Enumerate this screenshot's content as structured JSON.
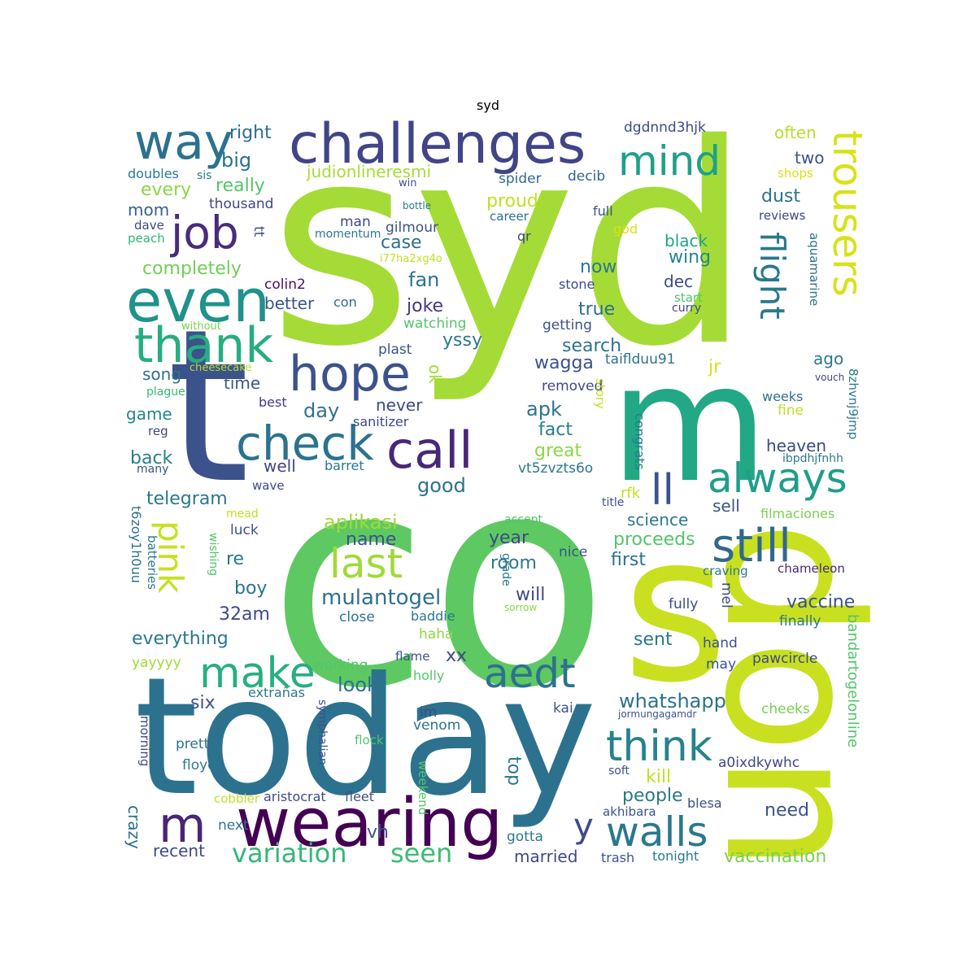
{
  "title": "syd",
  "words": [
    {
      "text": "syd",
      "color": "#a5db36"
    },
    {
      "text": "co",
      "color": "#5ec962"
    },
    {
      "text": "today",
      "color": "#2c728e"
    },
    {
      "text": "t",
      "color": "#3b528b"
    },
    {
      "text": "m",
      "color": "#22a884"
    },
    {
      "text": "don",
      "color": "#c8e020"
    },
    {
      "text": "s",
      "color": "#c8e020"
    },
    {
      "text": "challenges",
      "color": "#414487"
    },
    {
      "text": "wearing",
      "color": "#440154"
    },
    {
      "text": "even",
      "color": "#21918c"
    },
    {
      "text": "way",
      "color": "#2c728e"
    },
    {
      "text": "job",
      "color": "#472d7b"
    },
    {
      "text": "thank",
      "color": "#27ad81"
    },
    {
      "text": "hope",
      "color": "#3b528b"
    },
    {
      "text": "check",
      "color": "#2c728e"
    },
    {
      "text": "call",
      "color": "#482878"
    },
    {
      "text": "mind",
      "color": "#1fa088"
    },
    {
      "text": "trousers",
      "color": "#d8e219"
    },
    {
      "text": "flight",
      "color": "#2a788e"
    },
    {
      "text": "always",
      "color": "#1f9e89"
    },
    {
      "text": "ll",
      "color": "#3b528b"
    },
    {
      "text": "still",
      "color": "#31688e"
    },
    {
      "text": "last",
      "color": "#a0da39"
    },
    {
      "text": "pink",
      "color": "#c8e020"
    },
    {
      "text": "make",
      "color": "#28ae80"
    },
    {
      "text": "aedt",
      "color": "#2c728e"
    },
    {
      "text": "think",
      "color": "#26828e"
    },
    {
      "text": "m",
      "color": "#482677"
    },
    {
      "text": "y",
      "color": "#3e4a89"
    },
    {
      "text": "walls",
      "color": "#2a788e"
    },
    {
      "text": "variation",
      "color": "#35b779"
    },
    {
      "text": "seen",
      "color": "#3dbc74"
    },
    {
      "text": "right",
      "color": "#2f6c8e"
    },
    {
      "text": "big",
      "color": "#2e6e8e"
    },
    {
      "text": "really",
      "color": "#52c569"
    },
    {
      "text": "every",
      "color": "#8bd646"
    },
    {
      "text": "mom",
      "color": "#33638d"
    },
    {
      "text": "doubles",
      "color": "#2a788e"
    },
    {
      "text": "sis",
      "color": "#2a788e"
    },
    {
      "text": "thousand",
      "color": "#404688"
    },
    {
      "text": "dave",
      "color": "#3e4989"
    },
    {
      "text": "peach",
      "color": "#34b679"
    },
    {
      "text": "tt",
      "color": "#3e4989"
    },
    {
      "text": "completely",
      "color": "#70cf57"
    },
    {
      "text": "colin2",
      "color": "#471164"
    },
    {
      "text": "better",
      "color": "#3b528b"
    },
    {
      "text": "con",
      "color": "#31688e"
    },
    {
      "text": "without",
      "color": "#7ad151"
    },
    {
      "text": "cheesecake",
      "color": "#b5de2b"
    },
    {
      "text": "song",
      "color": "#2d718e"
    },
    {
      "text": "time",
      "color": "#39568c"
    },
    {
      "text": "plague",
      "color": "#37b878"
    },
    {
      "text": "best",
      "color": "#443a83"
    },
    {
      "text": "game",
      "color": "#25858e"
    },
    {
      "text": "reg",
      "color": "#3f4788"
    },
    {
      "text": "back",
      "color": "#277f8e"
    },
    {
      "text": "many",
      "color": "#3b528b"
    },
    {
      "text": "judionlineresmi",
      "color": "#a8db34"
    },
    {
      "text": "proud",
      "color": "#c2df23"
    },
    {
      "text": "case",
      "color": "#2d708e"
    },
    {
      "text": "fan",
      "color": "#2c728e"
    },
    {
      "text": "joke",
      "color": "#453781"
    },
    {
      "text": "watching",
      "color": "#52c569"
    },
    {
      "text": "yssy",
      "color": "#2a788e"
    },
    {
      "text": "plast",
      "color": "#3b528b"
    },
    {
      "text": "spider",
      "color": "#2f6c8e"
    },
    {
      "text": "win",
      "color": "#3b528b"
    },
    {
      "text": "bottle",
      "color": "#2a788e"
    },
    {
      "text": "man",
      "color": "#3e4989"
    },
    {
      "text": "momentum",
      "color": "#2a788e"
    },
    {
      "text": "gilmour",
      "color": "#3b528b"
    },
    {
      "text": "i77ha2xg4o",
      "color": "#c2df23"
    },
    {
      "text": "dgdnnd3hjk",
      "color": "#3e4989"
    },
    {
      "text": "decib",
      "color": "#31688e"
    },
    {
      "text": "career",
      "color": "#2c728e"
    },
    {
      "text": "full",
      "color": "#3b528b"
    },
    {
      "text": "god",
      "color": "#d8e219"
    },
    {
      "text": "qr",
      "color": "#3e4989"
    },
    {
      "text": "stone",
      "color": "#3e4989"
    },
    {
      "text": "getting",
      "color": "#3b528b"
    },
    {
      "text": "search",
      "color": "#2c728e"
    },
    {
      "text": "wagga",
      "color": "#3b528b"
    },
    {
      "text": "taiflduu91",
      "color": "#2c728e"
    },
    {
      "text": "jr",
      "color": "#d8e219"
    },
    {
      "text": "removed",
      "color": "#3e4989"
    },
    {
      "text": "apk",
      "color": "#2c728e"
    },
    {
      "text": "fact",
      "color": "#277f8e"
    },
    {
      "text": "story",
      "color": "#c2df23"
    },
    {
      "text": "congrats",
      "color": "#2a788e"
    },
    {
      "text": "great",
      "color": "#8bd646"
    },
    {
      "text": "vt5zvzts6o",
      "color": "#2a788e"
    },
    {
      "text": "often",
      "color": "#b5de2b"
    },
    {
      "text": "two",
      "color": "#3b528b"
    },
    {
      "text": "shops",
      "color": "#d8e219"
    },
    {
      "text": "dust",
      "color": "#2c728e"
    },
    {
      "text": "reviews",
      "color": "#404688"
    },
    {
      "text": "aquamarine",
      "color": "#2c728e"
    },
    {
      "text": "black",
      "color": "#20a386"
    },
    {
      "text": "wing",
      "color": "#25858e"
    },
    {
      "text": "dec",
      "color": "#3e4989"
    },
    {
      "text": "now",
      "color": "#2a788e"
    },
    {
      "text": "true",
      "color": "#2e6e8e"
    },
    {
      "text": "start",
      "color": "#52c569"
    },
    {
      "text": "curry",
      "color": "#3e4989"
    },
    {
      "text": "ago",
      "color": "#2a788e"
    },
    {
      "text": "vouch",
      "color": "#404688"
    },
    {
      "text": "8zhvnj9jmp",
      "color": "#2a788e"
    },
    {
      "text": "weeks",
      "color": "#2d708e"
    },
    {
      "text": "fine",
      "color": "#c2df23"
    },
    {
      "text": "heaven",
      "color": "#3e4989"
    },
    {
      "text": "ibpdhjfnhh",
      "color": "#2a788e"
    },
    {
      "text": "never",
      "color": "#3e4989"
    },
    {
      "text": "ok",
      "color": "#a5db36"
    },
    {
      "text": "day",
      "color": "#2c728e"
    },
    {
      "text": "sanitizer",
      "color": "#3e4989"
    },
    {
      "text": "barret",
      "color": "#2a788e"
    },
    {
      "text": "well",
      "color": "#414487"
    },
    {
      "text": "good",
      "color": "#2c728e"
    },
    {
      "text": "telegram",
      "color": "#2a788e"
    },
    {
      "text": "wave",
      "color": "#3e4989"
    },
    {
      "text": "aplikasi",
      "color": "#a0da39"
    },
    {
      "text": "name",
      "color": "#3b528b"
    },
    {
      "text": "mulantogel",
      "color": "#2c728e"
    },
    {
      "text": "rfk",
      "color": "#c2df23"
    },
    {
      "text": "science",
      "color": "#2a788e"
    },
    {
      "text": "sell",
      "color": "#3b528b"
    },
    {
      "text": "title",
      "color": "#3b528b"
    },
    {
      "text": "filmaciones",
      "color": "#7ad151"
    },
    {
      "text": "proceeds",
      "color": "#52c569"
    },
    {
      "text": "first",
      "color": "#2c728e"
    },
    {
      "text": "year",
      "color": "#3e4989"
    },
    {
      "text": "room",
      "color": "#2a788e"
    },
    {
      "text": "nice",
      "color": "#3b528b"
    },
    {
      "text": "accept",
      "color": "#52c569"
    },
    {
      "text": "grade",
      "color": "#2a788e"
    },
    {
      "text": "will",
      "color": "#3e4989"
    },
    {
      "text": "sorrow",
      "color": "#8bd646"
    },
    {
      "text": "mel",
      "color": "#3e4989"
    },
    {
      "text": "craving",
      "color": "#2a788e"
    },
    {
      "text": "chameleon",
      "color": "#482878"
    },
    {
      "text": "vaccine",
      "color": "#3b528b"
    },
    {
      "text": "fully",
      "color": "#3e4989"
    },
    {
      "text": "finally",
      "color": "#2a788e"
    },
    {
      "text": "bandartogelonline",
      "color": "#52c569"
    },
    {
      "text": "hand",
      "color": "#3b528b"
    },
    {
      "text": "sent",
      "color": "#2a788e"
    },
    {
      "text": "pawcircle",
      "color": "#3e4989"
    },
    {
      "text": "may",
      "color": "#3b528b"
    },
    {
      "text": "d",
      "color": "#c2df23"
    },
    {
      "text": "whatshapp",
      "color": "#2c728e"
    },
    {
      "text": "xx",
      "color": "#3e4989"
    },
    {
      "text": "look",
      "color": "#2c728e"
    },
    {
      "text": "working",
      "color": "#52c569"
    },
    {
      "text": "flame",
      "color": "#3b528b"
    },
    {
      "text": "holly",
      "color": "#52c569"
    },
    {
      "text": "haha",
      "color": "#8bd646"
    },
    {
      "text": "baddie",
      "color": "#2a788e"
    },
    {
      "text": "close",
      "color": "#2c728e"
    },
    {
      "text": "kai",
      "color": "#3b528b"
    },
    {
      "text": "im",
      "color": "#3e4989"
    },
    {
      "text": "venom",
      "color": "#2c728e"
    },
    {
      "text": "jormungagamdr",
      "color": "#3b528b"
    },
    {
      "text": "cheeks",
      "color": "#7ad151"
    },
    {
      "text": "a0ixdkywhc",
      "color": "#3e4989"
    },
    {
      "text": "soft",
      "color": "#3b528b"
    },
    {
      "text": "kill",
      "color": "#c2df23"
    },
    {
      "text": "people",
      "color": "#2a788e"
    },
    {
      "text": "top",
      "color": "#2a788e"
    },
    {
      "text": "blesa",
      "color": "#3b528b"
    },
    {
      "text": "akhibara",
      "color": "#3b528b"
    },
    {
      "text": "need",
      "color": "#3b528b"
    },
    {
      "text": "vaccination",
      "color": "#7ad151"
    },
    {
      "text": "married",
      "color": "#3e4989"
    },
    {
      "text": "trash",
      "color": "#3b528b"
    },
    {
      "text": "tonight",
      "color": "#2a788e"
    },
    {
      "text": "gotta",
      "color": "#2a788e"
    },
    {
      "text": "vh",
      "color": "#3b528b"
    },
    {
      "text": "weekend",
      "color": "#52c569"
    },
    {
      "text": "fleet",
      "color": "#3b528b"
    },
    {
      "text": "aristocrat",
      "color": "#3e4989"
    },
    {
      "text": "cobbler",
      "color": "#c2df23"
    },
    {
      "text": "next",
      "color": "#2a788e"
    },
    {
      "text": "recent",
      "color": "#3e4989"
    },
    {
      "text": "crazy",
      "color": "#2c728e"
    },
    {
      "text": "symphalian",
      "color": "#3b528b"
    },
    {
      "text": "flock",
      "color": "#52c569"
    },
    {
      "text": "floyd",
      "color": "#2a788e"
    },
    {
      "text": "pretty",
      "color": "#2c728e"
    },
    {
      "text": "morning",
      "color": "#3e4989"
    },
    {
      "text": "six",
      "color": "#3b528b"
    },
    {
      "text": "extrañas",
      "color": "#2a788e"
    },
    {
      "text": "yayyyy",
      "color": "#a0da39"
    },
    {
      "text": "everything",
      "color": "#2a788e"
    },
    {
      "text": "32am",
      "color": "#3e4989"
    },
    {
      "text": "boy",
      "color": "#2c728e"
    },
    {
      "text": "re",
      "color": "#2a788e"
    },
    {
      "text": "luck",
      "color": "#3b528b"
    },
    {
      "text": "mead",
      "color": "#c2df23"
    },
    {
      "text": "wishing",
      "color": "#52c569"
    },
    {
      "text": "batteries",
      "color": "#2a788e"
    },
    {
      "text": "t6zoy1h0uu",
      "color": "#2c728e"
    }
  ]
}
